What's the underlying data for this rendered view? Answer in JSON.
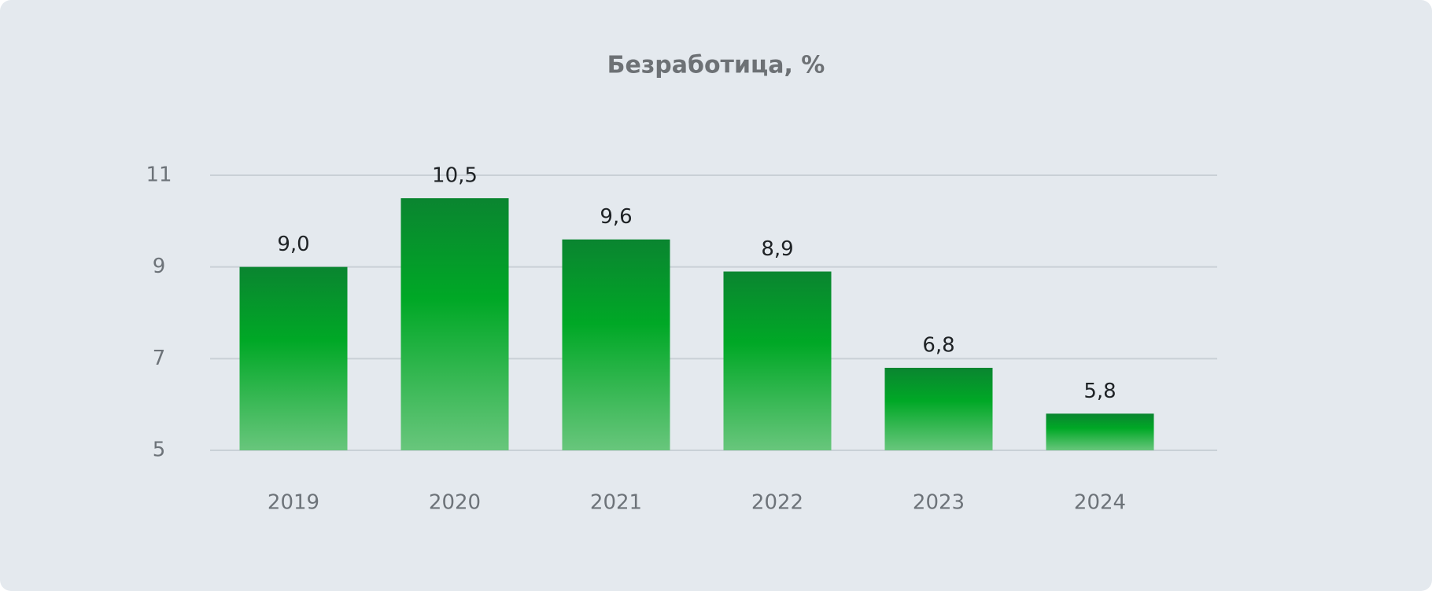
{
  "chart_data": {
    "type": "bar",
    "title": "Безработица, %",
    "categories": [
      "2019",
      "2020",
      "2021",
      "2022",
      "2023",
      "2024"
    ],
    "values": [
      9.0,
      10.5,
      9.6,
      8.9,
      6.8,
      5.8
    ],
    "value_labels": [
      "9,0",
      "10,5",
      "9,6",
      "8,9",
      "6,8",
      "5,8"
    ],
    "color": "#00a826",
    "ylim": [
      5,
      11
    ],
    "yticks": [
      5,
      7,
      9,
      11
    ],
    "grid": true
  }
}
